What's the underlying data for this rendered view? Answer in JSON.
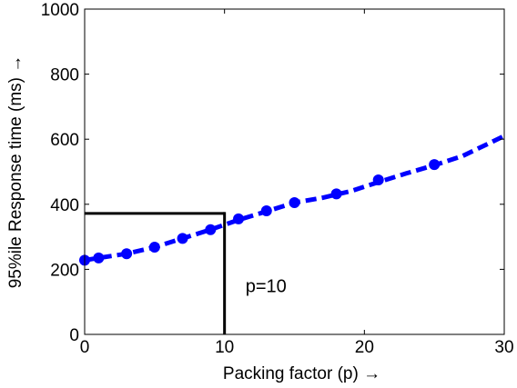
{
  "chart_data": {
    "type": "line",
    "title": "",
    "xlabel": "Packing factor (p) →",
    "ylabel": "95%ile Response time (ms) →",
    "xlim": [
      0,
      30
    ],
    "ylim": [
      0,
      1000
    ],
    "xticks": [
      0,
      10,
      20,
      30
    ],
    "yticks": [
      0,
      200,
      400,
      600,
      800,
      1000
    ],
    "grid": false,
    "series": [
      {
        "color": "#0000ff",
        "line_style": "dashed",
        "marker": "circle",
        "x": [
          0,
          1,
          3,
          5,
          7,
          9,
          11,
          13,
          15,
          17,
          19,
          21,
          23,
          25,
          27,
          30
        ],
        "y": [
          228,
          235,
          248,
          268,
          295,
          322,
          352,
          378,
          405,
          420,
          440,
          468,
          495,
          520,
          548,
          610
        ],
        "marker_x": [
          0,
          1,
          3,
          5,
          7,
          9,
          11,
          13,
          15,
          18,
          21,
          25
        ],
        "marker_y": [
          228,
          235,
          248,
          268,
          295,
          322,
          355,
          380,
          405,
          432,
          475,
          522
        ]
      }
    ],
    "annotations": [
      {
        "text": "p=10",
        "x": 11.5,
        "y": 150,
        "guide": {
          "x": 10,
          "y": 372,
          "color": "#000000"
        }
      }
    ]
  }
}
